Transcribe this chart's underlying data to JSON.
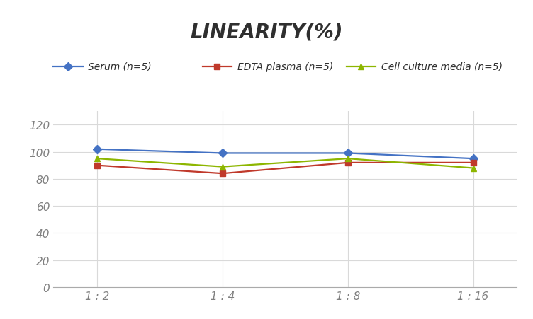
{
  "title": "LINEARITY(%)",
  "x_labels": [
    "1 : 2",
    "1 : 4",
    "1 : 8",
    "1 : 16"
  ],
  "x_positions": [
    0,
    1,
    2,
    3
  ],
  "series": [
    {
      "label": "Serum (n=5)",
      "color": "#4472C4",
      "marker": "D",
      "values": [
        102,
        99,
        99,
        95
      ]
    },
    {
      "label": "EDTA plasma (n=5)",
      "color": "#C0392B",
      "marker": "s",
      "values": [
        90,
        84,
        92,
        92
      ]
    },
    {
      "label": "Cell culture media (n=5)",
      "color": "#8DB600",
      "marker": "^",
      "values": [
        95,
        89,
        95,
        88
      ]
    }
  ],
  "ylim": [
    0,
    130
  ],
  "yticks": [
    0,
    20,
    40,
    60,
    80,
    100,
    120
  ],
  "grid_color": "#D9D9D9",
  "bg_color": "#FFFFFF",
  "title_fontsize": 20,
  "legend_fontsize": 10,
  "tick_fontsize": 11,
  "tick_color": "#808080"
}
